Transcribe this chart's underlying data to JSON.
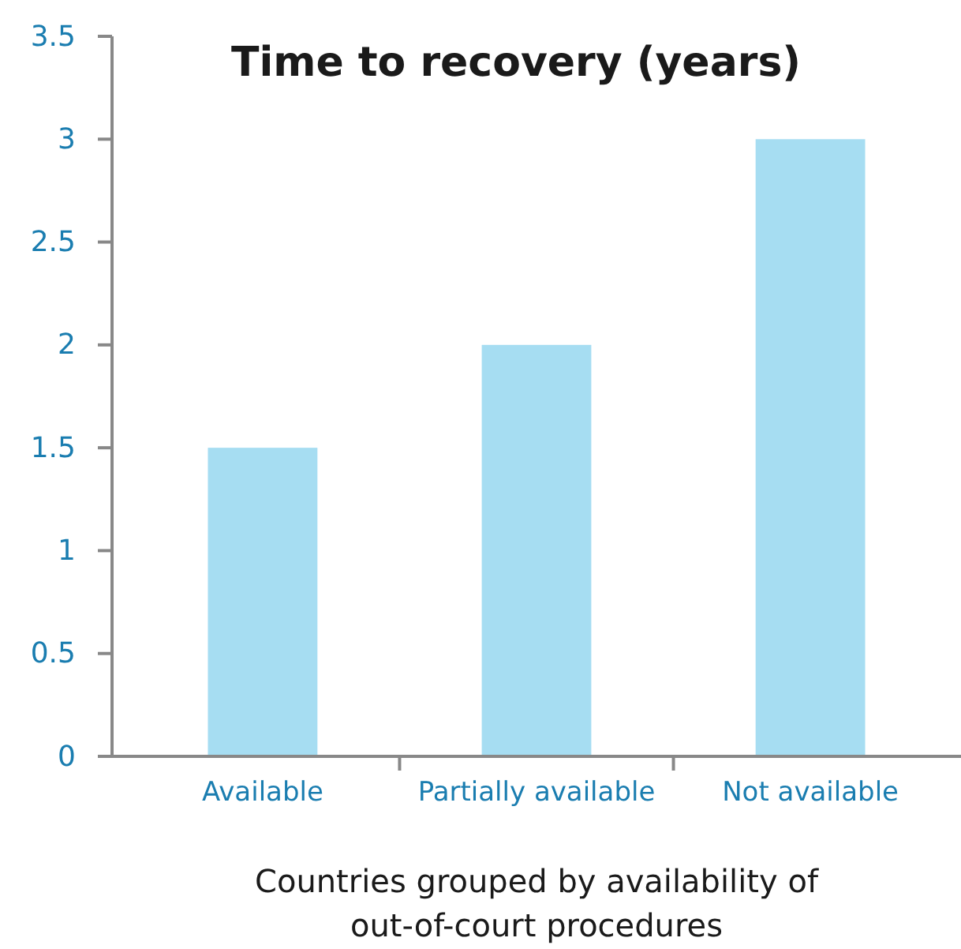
{
  "chart_data": {
    "type": "bar",
    "title": "Time to recovery (years)",
    "xlabel": "Countries grouped by availability of out-of-court procedures",
    "categories": [
      "Available",
      "Partially available",
      "Not available"
    ],
    "values": [
      1.5,
      2,
      3
    ],
    "color": "#a6ddf2",
    "ylim": [
      0,
      3.5
    ],
    "yticks": [
      0,
      0.5,
      1,
      1.5,
      2,
      2.5,
      3,
      3.5
    ],
    "grid": false
  }
}
